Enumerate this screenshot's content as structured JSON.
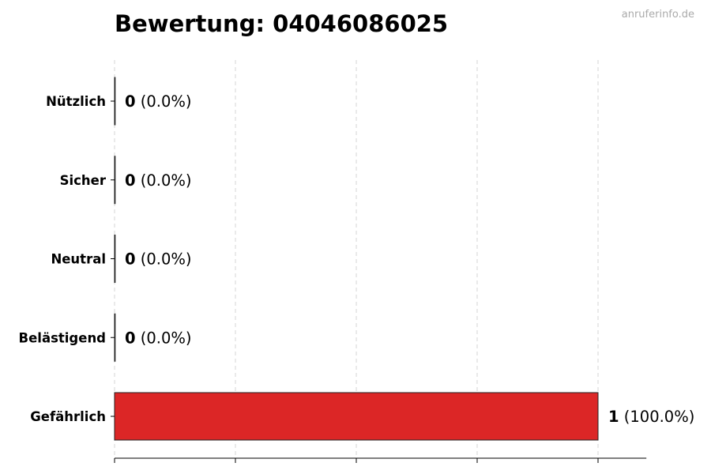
{
  "watermark": "anruferinfo.de",
  "chart_data": {
    "type": "bar",
    "orientation": "horizontal",
    "title": "Bewertung: 04046086025",
    "xlabel": "",
    "ylabel": "",
    "categories": [
      "Nützlich",
      "Sicher",
      "Neutral",
      "Belästigend",
      "Gefährlich"
    ],
    "values": [
      0,
      0,
      0,
      0,
      1
    ],
    "data_labels": [
      {
        "count": "0",
        "percent": "(0.0%)"
      },
      {
        "count": "0",
        "percent": "(0.0%)"
      },
      {
        "count": "0",
        "percent": "(0.0%)"
      },
      {
        "count": "0",
        "percent": "(0.0%)"
      },
      {
        "count": "1",
        "percent": "(100.0%)"
      }
    ],
    "xlim": [
      0,
      1.1
    ],
    "xticks": [
      0,
      0.25,
      0.5,
      0.75,
      1
    ],
    "xtick_labels_shown": false,
    "grid": "vertical dashed",
    "bar_color": "#dc2626",
    "edge_color": "#222222"
  }
}
